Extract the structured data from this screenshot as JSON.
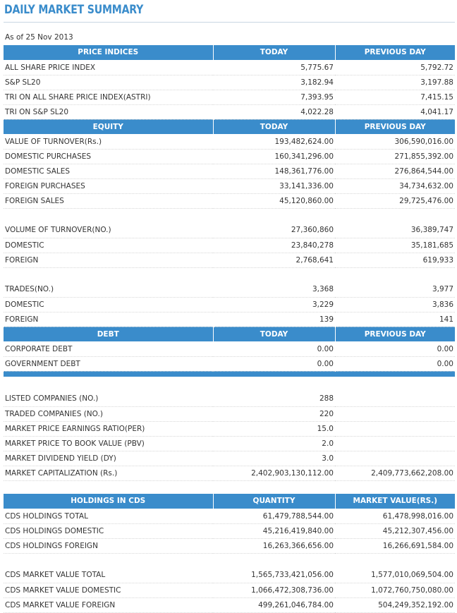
{
  "page": {
    "title": "DAILY MARKET SUMMARY",
    "as_of": "As of 25 Nov 2013"
  },
  "main_table": {
    "sections": [
      {
        "headers": [
          "PRICE INDICES",
          "TODAY",
          "PREVIOUS DAY"
        ],
        "rows": [
          [
            "ALL SHARE PRICE INDEX",
            "5,775.67",
            "5,792.72"
          ],
          [
            "S&P SL20",
            "3,182.94",
            "3,197.88"
          ],
          [
            "TRI ON ALL SHARE PRICE INDEX(ASTRI)",
            "7,393.95",
            "7,415.15"
          ],
          [
            "TRI ON S&P SL20",
            "4,022.28",
            "4,041.17"
          ]
        ]
      },
      {
        "headers": [
          "EQUITY",
          "TODAY",
          "PREVIOUS DAY"
        ],
        "rows": [
          [
            "VALUE OF TURNOVER(Rs.)",
            "193,482,624.00",
            "306,590,016.00"
          ],
          [
            "DOMESTIC PURCHASES",
            "160,341,296.00",
            "271,855,392.00"
          ],
          [
            "DOMESTIC SALES",
            "148,361,776.00",
            "276,864,544.00"
          ],
          [
            "FOREIGN PURCHASES",
            "33,141,336.00",
            "34,734,632.00"
          ],
          [
            "FOREIGN SALES",
            "45,120,860.00",
            "29,725,476.00"
          ],
          [
            "",
            "",
            ""
          ],
          [
            "VOLUME OF TURNOVER(NO.)",
            "27,360,860",
            "36,389,747"
          ],
          [
            "DOMESTIC",
            "23,840,278",
            "35,181,685"
          ],
          [
            "FOREIGN",
            "2,768,641",
            "619,933"
          ],
          [
            "",
            "",
            ""
          ],
          [
            "TRADES(NO.)",
            "3,368",
            "3,977"
          ],
          [
            "DOMESTIC",
            "3,229",
            "3,836"
          ],
          [
            "FOREIGN",
            "139",
            "141"
          ]
        ]
      },
      {
        "headers": [
          "DEBT",
          "TODAY",
          "PREVIOUS DAY"
        ],
        "rows": [
          [
            "CORPORATE DEBT",
            "0.00",
            "0.00"
          ],
          [
            "GOVERNMENT DEBT",
            "0.00",
            "0.00"
          ]
        ]
      }
    ],
    "market_rows": [
      [
        "",
        "",
        ""
      ],
      [
        "LISTED COMPANIES (NO.)",
        "288",
        ""
      ],
      [
        "TRADED COMPANIES (NO.)",
        "220",
        ""
      ],
      [
        "MARKET PRICE EARNINGS RATIO(PER)",
        "15.0",
        ""
      ],
      [
        "MARKET PRICE TO BOOK VALUE (PBV)",
        "2.0",
        ""
      ],
      [
        "MARKET DIVIDEND YIELD (DY)",
        "3.0",
        ""
      ],
      [
        "MARKET CAPITALIZATION (Rs.)",
        "2,402,903,130,112.00",
        "2,409,773,662,208.00"
      ]
    ]
  },
  "holdings_table": {
    "headers": [
      "HOLDINGS IN CDS",
      "QUANTITY",
      "MARKET VALUE(RS.)"
    ],
    "rows": [
      [
        "CDS HOLDINGS TOTAL",
        "61,479,788,544.00",
        "61,478,998,016.00"
      ],
      [
        "CDS HOLDINGS DOMESTIC",
        "45,216,419,840.00",
        "45,212,307,456.00"
      ],
      [
        "CDS HOLDINGS FOREIGN",
        "16,263,366,656.00",
        "16,266,691,584.00"
      ],
      [
        "",
        "",
        ""
      ],
      [
        "CDS MARKET VALUE TOTAL",
        "1,565,733,421,056.00",
        "1,577,010,069,504.00"
      ],
      [
        "CDS MARKET VALUE DOMESTIC",
        "1,066,472,308,736.00",
        "1,072,760,750,080.00"
      ],
      [
        "CDS MARKET VALUE FOREIGN",
        "499,261,046,784.00",
        "504,249,352,192.00"
      ]
    ]
  }
}
